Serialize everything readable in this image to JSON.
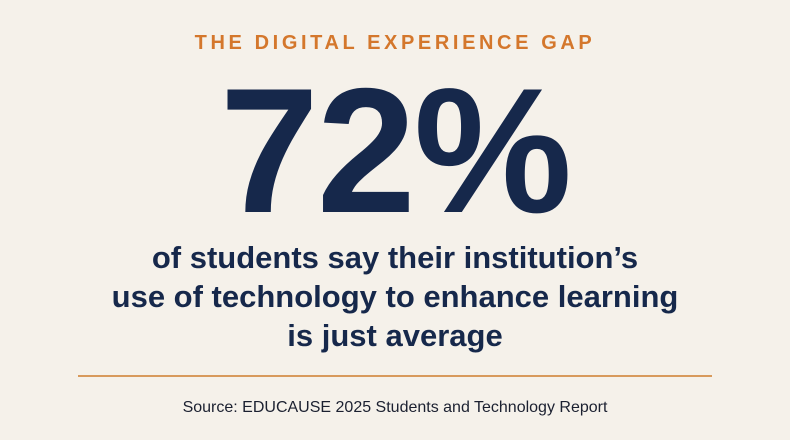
{
  "header": {
    "eyebrow": "THE DIGITAL EXPERIENCE GAP"
  },
  "stat": {
    "value": "72%"
  },
  "statement": {
    "lines": [
      "of students say their institution’s",
      "use of technology to enhance learning",
      "is just average"
    ]
  },
  "footer": {
    "source": "Source: EDUCAUSE 2025 Students and Technology Report"
  },
  "colors": {
    "background": "#f5f1ea",
    "accent": "#d4772c",
    "primary_text": "#16284b",
    "divider": "#d89a5c"
  }
}
